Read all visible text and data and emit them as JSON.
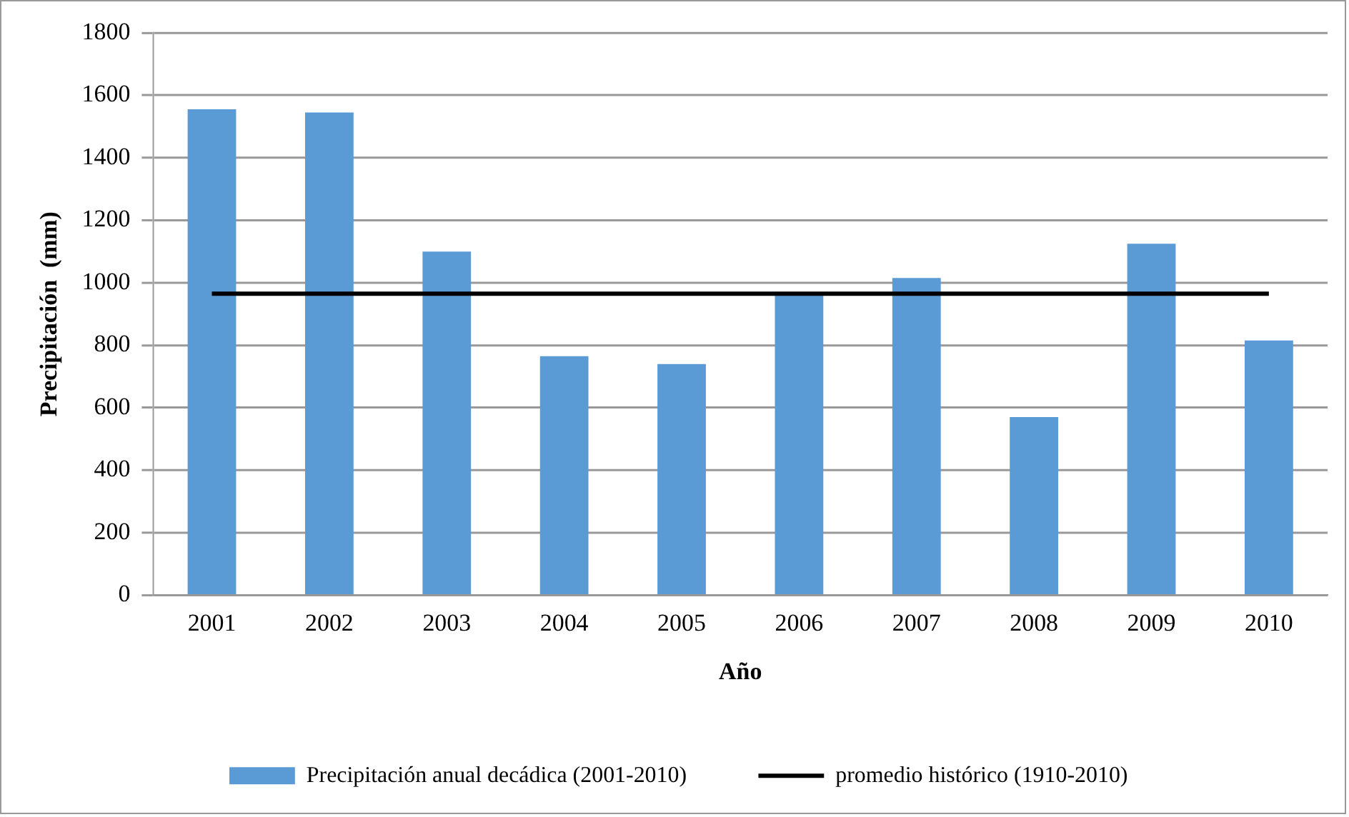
{
  "chart_data": {
    "type": "bar",
    "xlabel": "Año",
    "ylabel": "Precipitación  (mm)",
    "categories": [
      "2001",
      "2002",
      "2003",
      "2004",
      "2005",
      "2006",
      "2007",
      "2008",
      "2009",
      "2010"
    ],
    "series": [
      {
        "name": "Precipitación anual decádica (2001-2010)",
        "color": "#5b9bd5",
        "values": [
          1555,
          1545,
          1100,
          765,
          740,
          965,
          1015,
          570,
          1125,
          815
        ]
      },
      {
        "name": "promedio histórico (1910-2010)",
        "type": "line",
        "color": "#000000",
        "values": [
          965,
          965,
          965,
          965,
          965,
          965,
          965,
          965,
          965,
          965
        ]
      }
    ],
    "ylim": [
      0,
      1800
    ],
    "yticks": [
      0,
      200,
      400,
      600,
      800,
      1000,
      1200,
      1400,
      1600,
      1800
    ],
    "grid": "y",
    "legend": "bottom",
    "marker": "none"
  }
}
